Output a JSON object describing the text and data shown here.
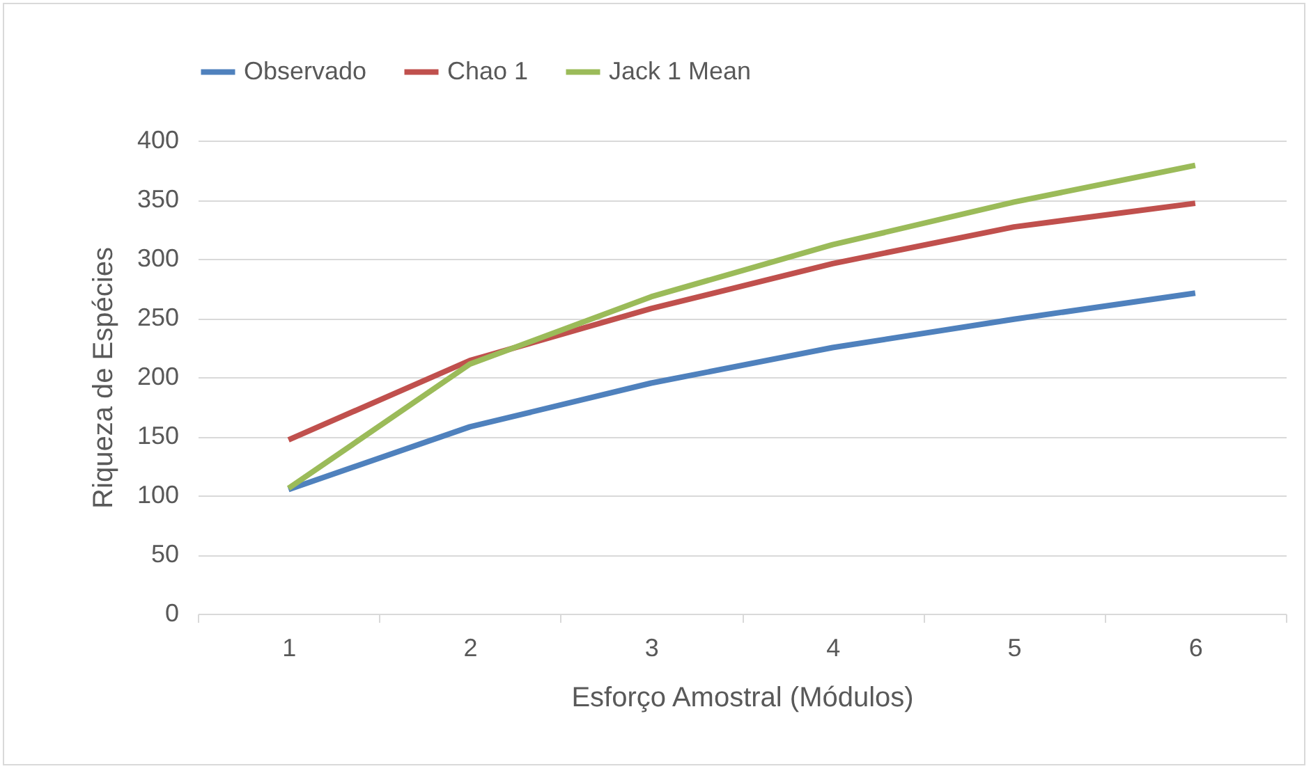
{
  "chart_data": {
    "type": "line",
    "xlabel": "Esforço Amostral (Módulos)",
    "ylabel": "Riqueza de Espécies",
    "categories": [
      "1",
      "2",
      "3",
      "4",
      "5",
      "6"
    ],
    "series": [
      {
        "name": "Observado",
        "color": "#4f81bd",
        "values": [
          105,
          158,
          195,
          225,
          249,
          271
        ]
      },
      {
        "name": "Chao 1",
        "color": "#c0504d",
        "values": [
          147,
          214,
          258,
          296,
          327,
          347
        ]
      },
      {
        "name": "Jack 1 Mean",
        "color": "#9bbb59",
        "values": [
          106,
          211,
          268,
          312,
          348,
          379
        ]
      }
    ],
    "ylim": [
      0,
      400
    ],
    "yticks": [
      0,
      50,
      100,
      150,
      200,
      250,
      300,
      350,
      400
    ],
    "grid": "y",
    "legend": "top",
    "marker": "none",
    "line_style": "solid"
  }
}
